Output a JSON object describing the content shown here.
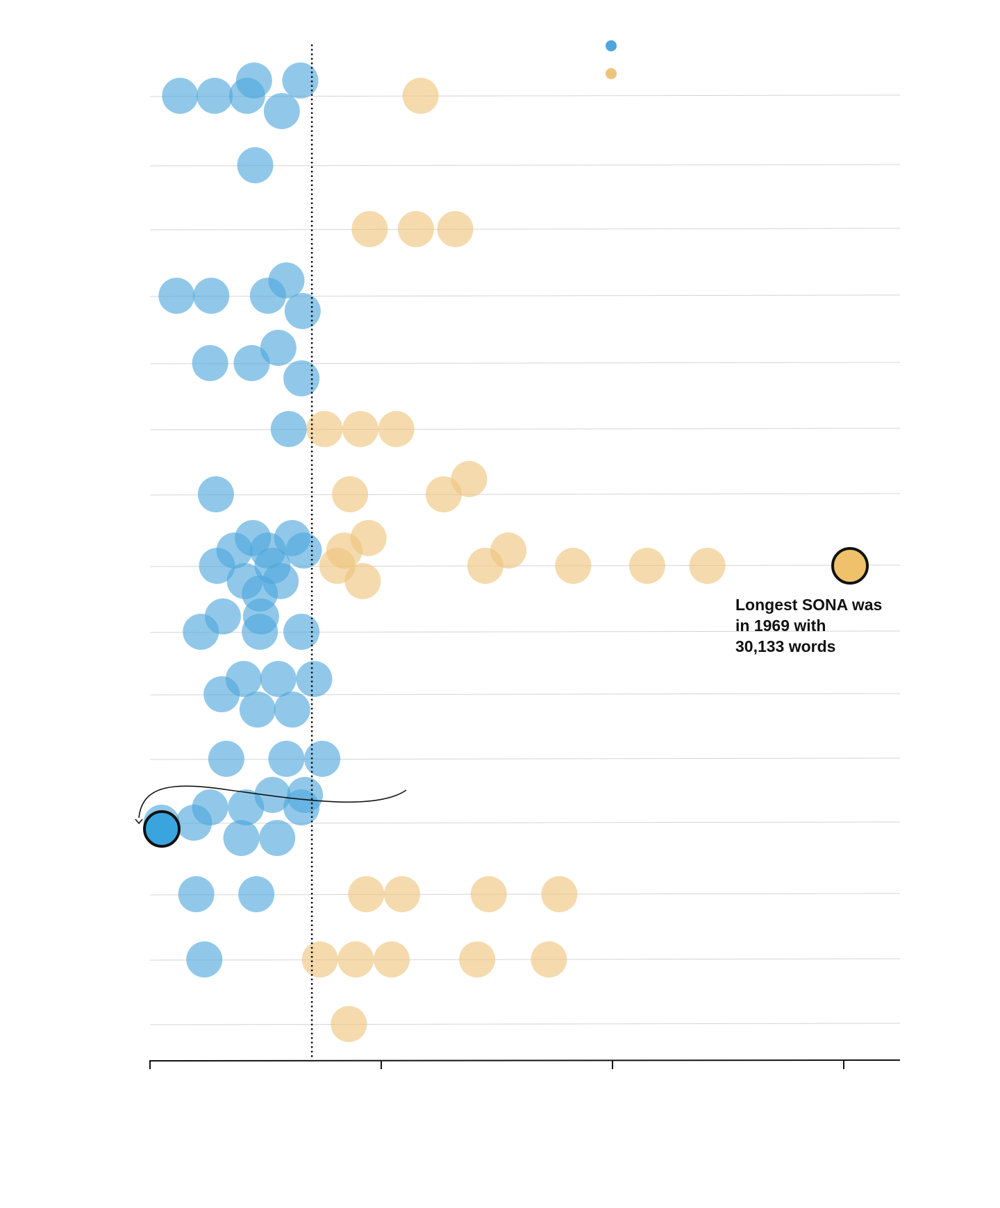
{
  "colors": {
    "blue": "#4ea6dc",
    "orange": "#eec47a",
    "highlight_blue": "#3aa4de",
    "highlight_orange": "#efc16a",
    "gridline": "#d4d4d4",
    "reference_line": "#111111"
  },
  "chart_data": {
    "type": "scatter",
    "title": "",
    "xlabel": "",
    "ylabel": "",
    "grid": "horizontal gridlines per row",
    "legend": {
      "placement": "top-right",
      "entries": [
        {
          "color": "#4ea6dc",
          "label": ""
        },
        {
          "color": "#eec47a",
          "label": ""
        }
      ]
    },
    "x_axis": {
      "range": [
        0,
        32500
      ],
      "ticks": [
        0,
        10000,
        20000,
        30000
      ],
      "tick_labels_visible": false
    },
    "reference_line_x": 7000,
    "rows": [
      {
        "y": 1,
        "blue": [
          1300,
          2800,
          4200,
          4500,
          5700,
          6500
        ],
        "orange": [
          11700
        ]
      },
      {
        "y": 2,
        "blue": [
          4550
        ],
        "orange": []
      },
      {
        "y": 3,
        "blue": [],
        "orange": [
          9500,
          11500,
          13200
        ]
      },
      {
        "y": 4,
        "blue": [
          1150,
          2650,
          5100,
          5900,
          6600
        ],
        "orange": []
      },
      {
        "y": 5,
        "blue": [
          2600,
          4400,
          5550,
          6550
        ],
        "orange": []
      },
      {
        "y": 6,
        "blue": [
          6000
        ],
        "orange": [
          7550,
          9100,
          10650
        ]
      },
      {
        "y": 7,
        "blue": [
          2850
        ],
        "orange": [
          8650,
          12700,
          13800
        ]
      },
      {
        "y": 8,
        "blue": [
          2900,
          3650,
          4100,
          4450,
          4750,
          5100,
          5300,
          5650,
          6150,
          6650
        ],
        "orange": [
          8100,
          8400,
          9200,
          9450,
          14500,
          15500,
          18300,
          21500,
          24100,
          30133
        ]
      },
      {
        "y": 9,
        "blue": [
          2200,
          3150,
          4750,
          4800,
          6550
        ],
        "orange": []
      },
      {
        "y": 10,
        "blue": [
          3100,
          4050,
          4650,
          5550,
          6150,
          7100
        ],
        "orange": []
      },
      {
        "y": 11,
        "blue": [
          3300,
          5900,
          7450
        ],
        "orange": []
      },
      {
        "y": 12,
        "blue": [
          500,
          1900,
          2600,
          3950,
          4150,
          5300,
          5500,
          6550,
          6700
        ],
        "orange": []
      },
      {
        "y": 13,
        "blue": [
          2000,
          4600
        ],
        "orange": [
          9350,
          10900,
          14650,
          17700
        ]
      },
      {
        "y": 14,
        "blue": [
          2350
        ],
        "orange": [
          7350,
          8900,
          10450,
          14150,
          17250
        ]
      },
      {
        "y": 15,
        "blue": [],
        "orange": [
          8600
        ]
      }
    ],
    "annotations": [
      {
        "text_lines": [
          "Longest SONA was",
          "in 1969 with",
          "30,133 words"
        ],
        "value": 30133
      }
    ]
  }
}
